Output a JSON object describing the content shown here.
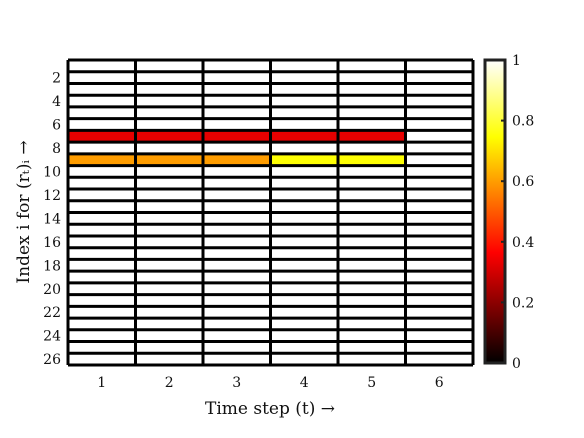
{
  "chart_data": {
    "type": "heatmap",
    "title": "",
    "xlabel": "Time step (t) →",
    "ylabel": "Index i for (rₜ)ᵢ →",
    "x_ticks": [
      "1",
      "2",
      "3",
      "4",
      "5",
      "6"
    ],
    "y_ticks": [
      "2",
      "4",
      "6",
      "8",
      "10",
      "12",
      "14",
      "16",
      "18",
      "20",
      "22",
      "24",
      "26"
    ],
    "n_rows": 26,
    "n_cols": 6,
    "value_range": [
      0,
      1
    ],
    "colormap": "hot",
    "colorbar_ticks": [
      "0",
      "0.2",
      "0.4",
      "0.6",
      "0.8",
      "1"
    ],
    "default_value": 1,
    "cells": [
      {
        "row": 7,
        "values": [
          0.33,
          0.33,
          0.33,
          0.33,
          0.33,
          1
        ]
      },
      {
        "row": 9,
        "values": [
          0.6,
          0.6,
          0.6,
          0.75,
          0.75,
          1
        ]
      }
    ]
  }
}
